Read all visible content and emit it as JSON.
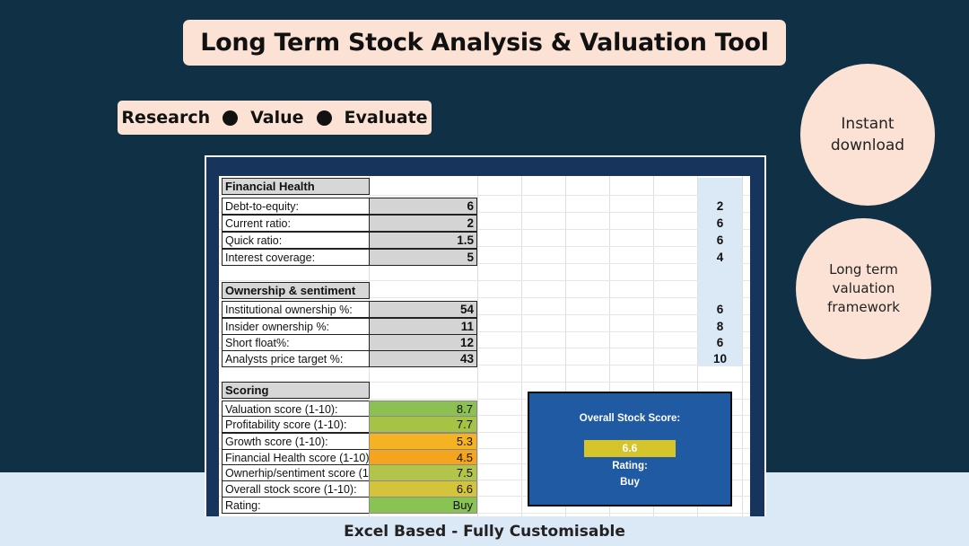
{
  "title": "Long Term Stock Analysis & Valuation Tool",
  "tagline": {
    "items": [
      "Research",
      "Value",
      "Evaluate"
    ]
  },
  "badges": {
    "download": "Instant download",
    "framework": "Long term valuation framework"
  },
  "financial_health": {
    "header": "Financial Health",
    "rows": [
      {
        "label": "Debt-to-equity:",
        "value": "6",
        "score": "2"
      },
      {
        "label": "Current ratio:",
        "value": "2",
        "score": "6"
      },
      {
        "label": "Quick ratio:",
        "value": "1.5",
        "score": "6"
      },
      {
        "label": "Interest coverage:",
        "value": "5",
        "score": "4"
      }
    ]
  },
  "ownership": {
    "header": "Ownership & sentiment",
    "rows": [
      {
        "label": "Institutional ownership %:",
        "value": "54",
        "score": "6"
      },
      {
        "label": "Insider ownership %:",
        "value": "11",
        "score": "8"
      },
      {
        "label": "Short float%:",
        "value": "12",
        "score": "6"
      },
      {
        "label": "Analysts price target %:",
        "value": "43",
        "score": "10"
      }
    ]
  },
  "scoring": {
    "header": "Scoring",
    "rows": [
      {
        "label": "Valuation score (1-10):",
        "value": "8.7",
        "color": "#8cc052"
      },
      {
        "label": "Profitability score (1-10):",
        "value": "7.7",
        "color": "#a7c346"
      },
      {
        "label": "Growth score (1-10):",
        "value": "5.3",
        "color": "#f5b323"
      },
      {
        "label": "Financial Health score (1-10):",
        "value": "4.5",
        "color": "#f5a41e"
      },
      {
        "label": "Ownerhip/sentiment score (1-",
        "value": "7.5",
        "color": "#b2c44a"
      },
      {
        "label": "Overall stock score (1-10):",
        "value": "6.6",
        "color": "#d4c43c"
      },
      {
        "label": "Rating:",
        "value": "Buy",
        "color": "#88c353"
      }
    ]
  },
  "overall_box": {
    "title": "Overall Stock Score:",
    "score": "6.6",
    "rating_label": "Rating:",
    "rating": "Buy"
  },
  "footer": "Excel Based - Fully Customisable"
}
